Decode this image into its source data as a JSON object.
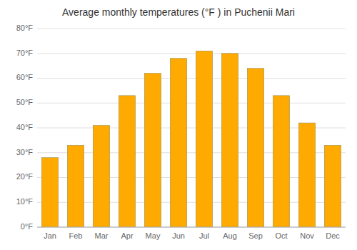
{
  "chart_data": {
    "type": "bar",
    "title": "Average monthly temperatures (°F ) in Puchenii Mari",
    "categories": [
      "Jan",
      "Feb",
      "Mar",
      "Apr",
      "May",
      "Jun",
      "Jul",
      "Aug",
      "Sep",
      "Oct",
      "Nov",
      "Dec"
    ],
    "values": [
      28,
      33,
      41,
      53,
      62,
      68,
      71,
      70,
      64,
      53,
      42,
      33
    ],
    "color": "#FFAA00",
    "ylim": [
      0,
      80
    ],
    "yticks": [
      {
        "value": 0,
        "label": "0°F"
      },
      {
        "value": 10,
        "label": "10°F"
      },
      {
        "value": 20,
        "label": "20°F"
      },
      {
        "value": 30,
        "label": "30°F"
      },
      {
        "value": 40,
        "label": "40°F"
      },
      {
        "value": 50,
        "label": "50°F"
      },
      {
        "value": 60,
        "label": "60°F"
      },
      {
        "value": 70,
        "label": "70°F"
      },
      {
        "value": 80,
        "label": "80°F"
      }
    ],
    "grid": true
  }
}
